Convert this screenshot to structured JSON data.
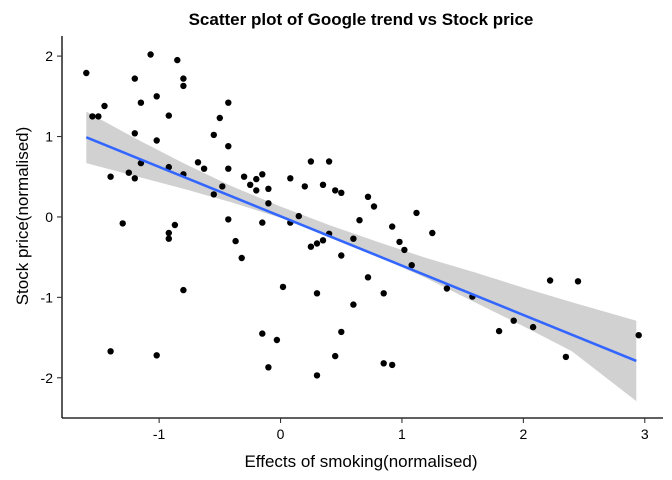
{
  "chart_data": {
    "type": "scatter",
    "title": "Scatter plot of Google trend vs Stock price",
    "xlabel": "Effects of smoking(normalised)",
    "ylabel": "Stock price(normalised)",
    "xlim": [
      -1.8,
      3.15
    ],
    "ylim": [
      -2.5,
      2.25
    ],
    "x_ticks": [
      -1,
      0,
      1,
      2,
      3
    ],
    "x_tick_labels": [
      "-1",
      "0",
      "1",
      "2",
      "3"
    ],
    "y_ticks": [
      -2,
      -1,
      0,
      1,
      2
    ],
    "y_tick_labels": [
      "-2",
      "-1",
      "0",
      "1",
      "2"
    ],
    "grid": false,
    "point_color": "#000000",
    "trend_color": "#3366ff",
    "band_color": "#999999",
    "points": [
      [
        -1.6,
        1.79
      ],
      [
        -1.55,
        1.25
      ],
      [
        -1.5,
        1.25
      ],
      [
        -1.45,
        1.38
      ],
      [
        -1.4,
        0.5
      ],
      [
        -1.4,
        -1.67
      ],
      [
        -1.25,
        0.55
      ],
      [
        -1.2,
        1.72
      ],
      [
        -1.2,
        1.04
      ],
      [
        -1.2,
        0.48
      ],
      [
        -1.15,
        1.42
      ],
      [
        -1.15,
        0.67
      ],
      [
        -1.3,
        -0.08
      ],
      [
        -1.07,
        2.02
      ],
      [
        -1.02,
        1.5
      ],
      [
        -1.02,
        0.95
      ],
      [
        -1.02,
        -1.72
      ],
      [
        -0.92,
        1.26
      ],
      [
        -0.92,
        0.62
      ],
      [
        -0.92,
        -0.2
      ],
      [
        -0.92,
        -0.27
      ],
      [
        -0.85,
        1.95
      ],
      [
        -0.87,
        -0.1
      ],
      [
        -0.8,
        1.72
      ],
      [
        -0.8,
        1.63
      ],
      [
        -0.8,
        0.53
      ],
      [
        -0.8,
        -0.91
      ],
      [
        -0.68,
        0.68
      ],
      [
        -0.63,
        0.6
      ],
      [
        -0.55,
        1.02
      ],
      [
        -0.55,
        0.28
      ],
      [
        -0.5,
        1.23
      ],
      [
        -0.48,
        0.38
      ],
      [
        -0.43,
        1.42
      ],
      [
        -0.43,
        0.88
      ],
      [
        -0.43,
        0.6
      ],
      [
        -0.43,
        -0.03
      ],
      [
        -0.37,
        -0.3
      ],
      [
        -0.3,
        0.5
      ],
      [
        -0.32,
        -0.51
      ],
      [
        -0.25,
        0.4
      ],
      [
        -0.2,
        0.47
      ],
      [
        -0.2,
        0.33
      ],
      [
        -0.15,
        0.53
      ],
      [
        -0.15,
        -0.07
      ],
      [
        -0.15,
        -1.45
      ],
      [
        -0.1,
        0.35
      ],
      [
        -0.1,
        0.17
      ],
      [
        -0.1,
        -1.87
      ],
      [
        -0.03,
        -1.53
      ],
      [
        0.02,
        -0.87
      ],
      [
        0.08,
        0.48
      ],
      [
        0.08,
        -0.07
      ],
      [
        0.15,
        0.01
      ],
      [
        0.2,
        0.38
      ],
      [
        0.25,
        0.69
      ],
      [
        0.25,
        -0.37
      ],
      [
        0.3,
        -0.33
      ],
      [
        0.3,
        -0.95
      ],
      [
        0.3,
        -1.97
      ],
      [
        0.35,
        0.4
      ],
      [
        0.35,
        -0.29
      ],
      [
        0.4,
        0.69
      ],
      [
        0.4,
        -0.21
      ],
      [
        0.45,
        0.33
      ],
      [
        0.45,
        -1.73
      ],
      [
        0.5,
        0.3
      ],
      [
        0.5,
        -0.48
      ],
      [
        0.5,
        -1.43
      ],
      [
        0.6,
        -0.27
      ],
      [
        0.6,
        -1.09
      ],
      [
        0.65,
        -0.04
      ],
      [
        0.72,
        0.25
      ],
      [
        0.72,
        -0.75
      ],
      [
        0.77,
        0.13
      ],
      [
        0.85,
        -0.95
      ],
      [
        0.85,
        -1.82
      ],
      [
        0.92,
        -0.12
      ],
      [
        0.92,
        -1.84
      ],
      [
        0.98,
        -0.31
      ],
      [
        1.02,
        -0.41
      ],
      [
        1.08,
        -0.6
      ],
      [
        1.12,
        0.05
      ],
      [
        1.25,
        -0.2
      ],
      [
        1.37,
        -0.89
      ],
      [
        1.58,
        -0.99
      ],
      [
        1.8,
        -1.42
      ],
      [
        1.92,
        -1.29
      ],
      [
        2.08,
        -1.37
      ],
      [
        2.22,
        -0.79
      ],
      [
        2.35,
        -1.74
      ],
      [
        2.45,
        -0.8
      ],
      [
        2.95,
        -1.47
      ]
    ],
    "trend_line": {
      "x": [
        -1.6,
        2.93
      ],
      "y": [
        0.99,
        -1.79
      ]
    },
    "confidence_band": {
      "x": [
        -1.6,
        -1.2,
        -0.8,
        -0.4,
        0.0,
        0.4,
        0.8,
        1.2,
        1.6,
        2.0,
        2.4,
        2.93
      ],
      "upper": [
        1.31,
        0.98,
        0.67,
        0.38,
        0.13,
        -0.1,
        -0.31,
        -0.51,
        -0.69,
        -0.88,
        -1.06,
        -1.29
      ],
      "lower": [
        0.67,
        0.51,
        0.35,
        0.18,
        -0.01,
        -0.24,
        -0.49,
        -0.76,
        -1.06,
        -1.36,
        -1.67,
        -2.29
      ]
    }
  }
}
